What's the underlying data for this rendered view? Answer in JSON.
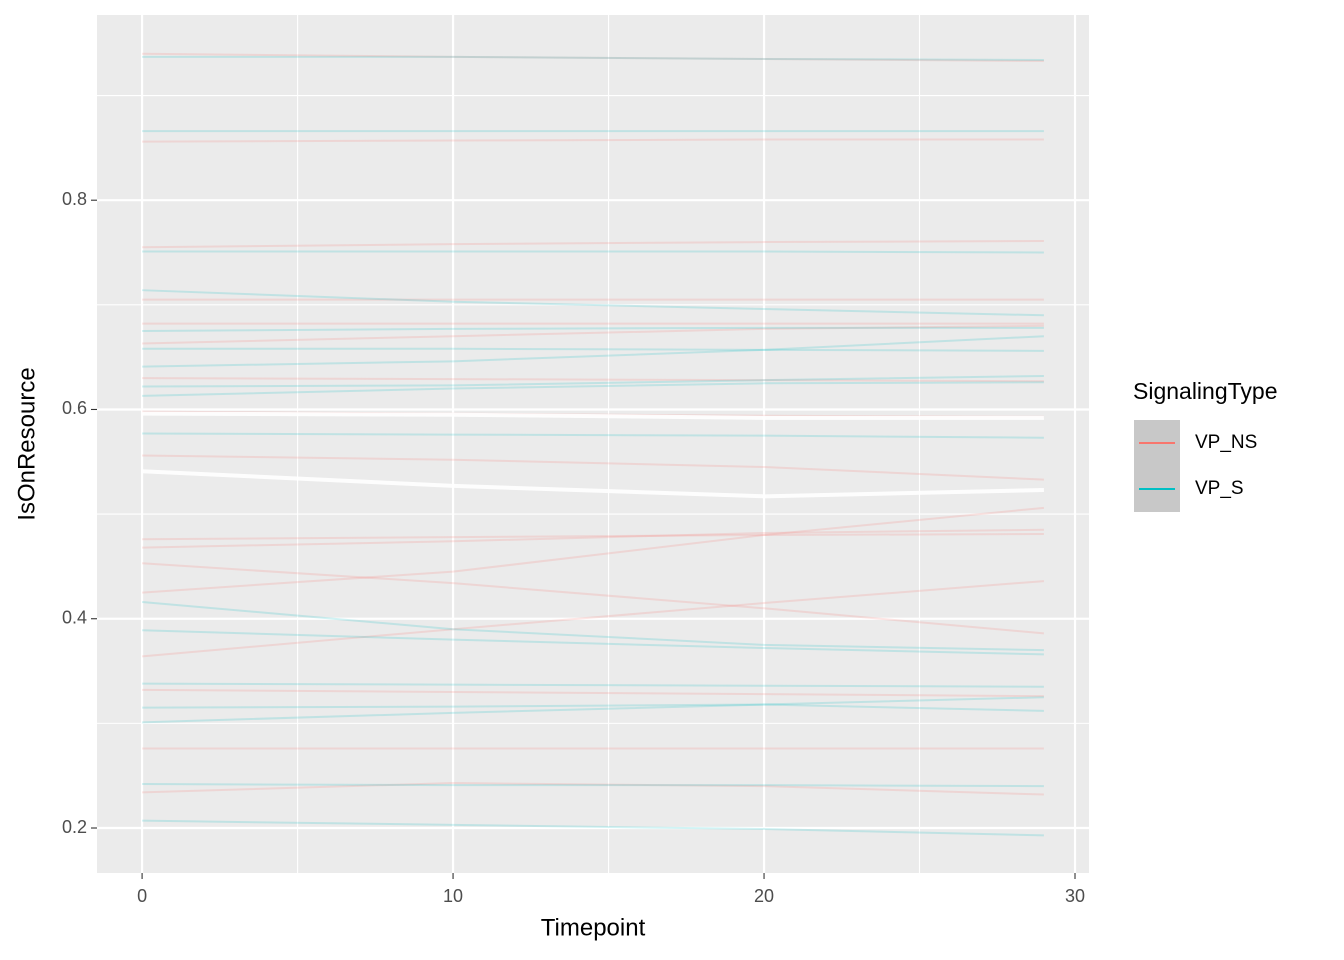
{
  "chart_data": {
    "type": "line",
    "x_label": "Timepoint",
    "y_label": "IsOnResource",
    "legend_title": "SignalingType",
    "legend_position": "right",
    "x": [
      0,
      10,
      20,
      29
    ],
    "xlim": [
      -1.45,
      30.45
    ],
    "xticks": [
      0,
      10,
      20,
      30
    ],
    "xminor": [
      5,
      15,
      25
    ],
    "ylim": [
      0.157,
      0.977
    ],
    "yticks": [
      0.2,
      0.4,
      0.6,
      0.8
    ],
    "yminor": [
      0.3,
      0.5,
      0.7,
      0.9
    ],
    "grid": true,
    "line_alpha": 0.18,
    "series": [
      {
        "name": "VP_NS",
        "color": "#F8766D",
        "lines": [
          [
            0.94,
            0.937,
            0.935,
            0.933
          ],
          [
            0.856,
            0.857,
            0.858,
            0.858
          ],
          [
            0.755,
            0.758,
            0.76,
            0.761
          ],
          [
            0.705,
            0.705,
            0.705,
            0.705
          ],
          [
            0.682,
            0.682,
            0.682,
            0.682
          ],
          [
            0.663,
            0.67,
            0.677,
            0.68
          ],
          [
            0.63,
            0.629,
            0.628,
            0.627
          ],
          [
            0.598,
            0.596,
            0.594,
            0.593
          ],
          [
            0.556,
            0.552,
            0.545,
            0.533
          ],
          [
            0.476,
            0.478,
            0.48,
            0.481
          ],
          [
            0.468,
            0.474,
            0.482,
            0.485
          ],
          [
            0.453,
            0.434,
            0.41,
            0.386
          ],
          [
            0.425,
            0.445,
            0.48,
            0.506
          ],
          [
            0.364,
            0.39,
            0.415,
            0.436
          ],
          [
            0.332,
            0.33,
            0.328,
            0.326
          ],
          [
            0.276,
            0.276,
            0.276,
            0.276
          ],
          [
            0.234,
            0.243,
            0.24,
            0.232
          ]
        ]
      },
      {
        "name": "VP_S",
        "color": "#00BFC4",
        "lines": [
          [
            0.937,
            0.937,
            0.935,
            0.934
          ],
          [
            0.866,
            0.866,
            0.866,
            0.866
          ],
          [
            0.751,
            0.751,
            0.751,
            0.75
          ],
          [
            0.714,
            0.703,
            0.696,
            0.69
          ],
          [
            0.675,
            0.677,
            0.678,
            0.678
          ],
          [
            0.658,
            0.658,
            0.657,
            0.656
          ],
          [
            0.641,
            0.646,
            0.657,
            0.67
          ],
          [
            0.622,
            0.623,
            0.628,
            0.632
          ],
          [
            0.613,
            0.62,
            0.625,
            0.626
          ],
          [
            0.577,
            0.576,
            0.575,
            0.573
          ],
          [
            0.416,
            0.39,
            0.375,
            0.37
          ],
          [
            0.389,
            0.38,
            0.372,
            0.366
          ],
          [
            0.338,
            0.337,
            0.336,
            0.335
          ],
          [
            0.315,
            0.316,
            0.318,
            0.312
          ],
          [
            0.301,
            0.31,
            0.318,
            0.325
          ],
          [
            0.242,
            0.241,
            0.241,
            0.24
          ],
          [
            0.207,
            0.203,
            0.199,
            0.193
          ]
        ]
      }
    ],
    "means": [
      {
        "color": "#ffffff",
        "values": [
          0.541,
          0.527,
          0.517,
          0.523
        ]
      },
      {
        "color": "#ffffff",
        "values": [
          0.596,
          0.595,
          0.592,
          0.592
        ]
      }
    ]
  }
}
